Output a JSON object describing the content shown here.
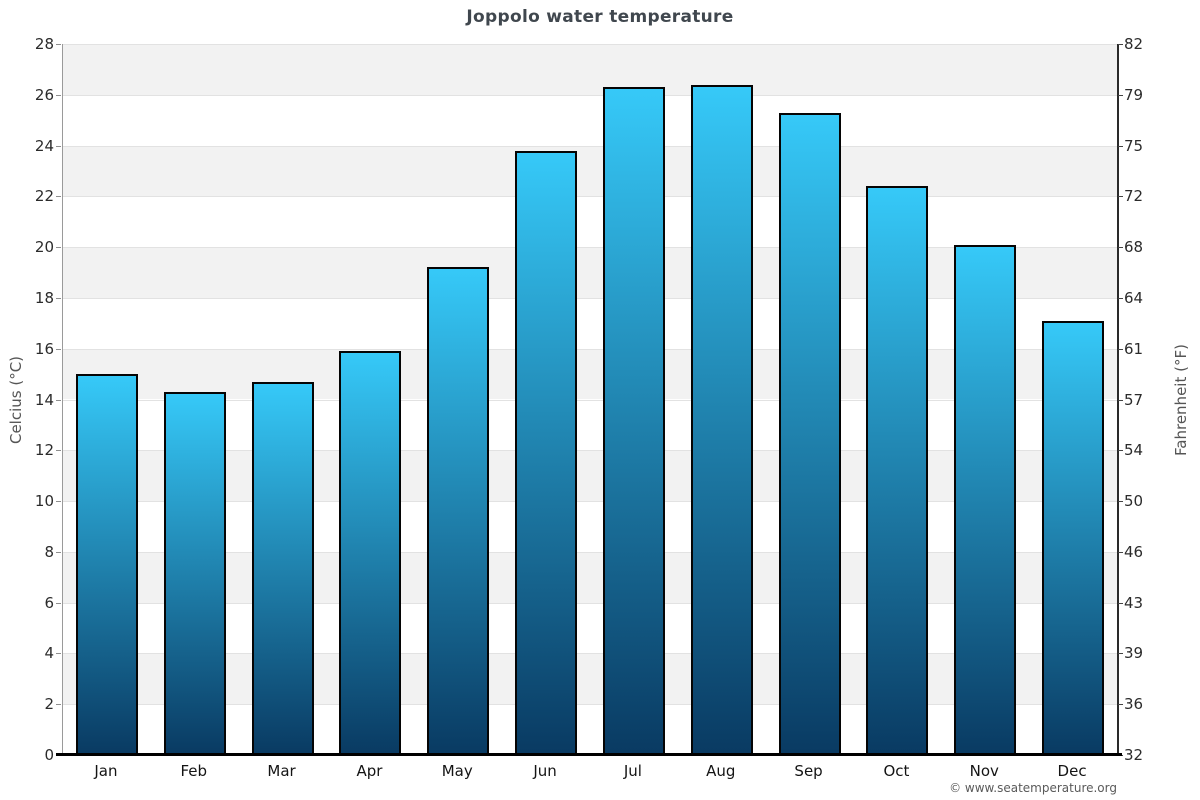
{
  "title": "Joppolo water temperature",
  "watermark": "© www.seatemperature.org",
  "axes": {
    "left_label": "Celcius (°C)",
    "right_label": "Fahrenheit (°F)"
  },
  "chart_data": {
    "type": "bar",
    "title": "Joppolo water temperature",
    "categories": [
      "Jan",
      "Feb",
      "Mar",
      "Apr",
      "May",
      "Jun",
      "Jul",
      "Aug",
      "Sep",
      "Oct",
      "Nov",
      "Dec"
    ],
    "values": [
      15.0,
      14.3,
      14.7,
      15.9,
      19.2,
      23.8,
      26.3,
      26.4,
      25.3,
      22.4,
      20.1,
      17.1
    ],
    "unit": "°C",
    "xlabel": "",
    "ylabel_left": "Celcius (°C)",
    "ylabel_right": "Fahrenheit (°F)",
    "ylim": [
      0,
      28
    ],
    "ytick_step": 2,
    "celsius_tick_labels": [
      "0",
      "2",
      "4",
      "6",
      "8",
      "10",
      "12",
      "14",
      "16",
      "18",
      "20",
      "22",
      "24",
      "26",
      "28"
    ],
    "fahrenheit_tick_labels": [
      "32",
      "36",
      "39",
      "43",
      "46",
      "50",
      "54",
      "57",
      "61",
      "64",
      "68",
      "72",
      "75",
      "79",
      "82"
    ],
    "legend": "none",
    "grid": "horizontal-bands-alternating",
    "colors": {
      "bar_gradient_top": "#36C9F8",
      "bar_gradient_bottom": "#093A62",
      "bar_border": "#050505",
      "band_shade": "#F2F2F2",
      "band_white": "#FFFFFF",
      "gridline": "#E2E2E2",
      "axis_line": "#000000",
      "title_text": "#40474E"
    }
  }
}
